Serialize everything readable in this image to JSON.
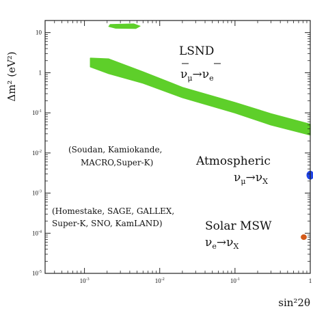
{
  "chart_data": {
    "type": "scatter",
    "title": "",
    "xlabel": "sin²2θ",
    "ylabel": "Δm² (eV²)",
    "x_scale": "log",
    "y_scale": "log",
    "xlim": [
      0.0003,
      1
    ],
    "ylim": [
      1e-05,
      20
    ],
    "grid": false,
    "x_ticks": [
      {
        "value": 0.001,
        "base": "10",
        "exp": "-3"
      },
      {
        "value": 0.01,
        "base": "10",
        "exp": "-2"
      },
      {
        "value": 0.1,
        "base": "10",
        "exp": "-1"
      },
      {
        "value": 1,
        "base": "1",
        "exp": ""
      }
    ],
    "y_ticks": [
      {
        "value": 10,
        "base": "10",
        "exp": ""
      },
      {
        "value": 1,
        "base": "1",
        "exp": ""
      },
      {
        "value": 0.1,
        "base": "10",
        "exp": "-1"
      },
      {
        "value": 0.01,
        "base": "10",
        "exp": "-2"
      },
      {
        "value": 0.001,
        "base": "10",
        "exp": "-3"
      },
      {
        "value": 0.0001,
        "base": "10",
        "exp": "-4"
      },
      {
        "value": 1e-05,
        "base": "10",
        "exp": "-5"
      }
    ],
    "regions": [
      {
        "name": "LSND",
        "color": "#5ecf2a",
        "shape": "band",
        "upper": [
          [
            0.0012,
            2.3
          ],
          [
            0.0021,
            2.2
          ],
          [
            0.006,
            1.05
          ],
          [
            0.02,
            0.43
          ],
          [
            0.1,
            0.18
          ],
          [
            0.3,
            0.095
          ],
          [
            1,
            0.052
          ]
        ],
        "lower": [
          [
            0.0012,
            1.4
          ],
          [
            0.0021,
            0.95
          ],
          [
            0.006,
            0.55
          ],
          [
            0.02,
            0.24
          ],
          [
            0.1,
            0.1
          ],
          [
            0.3,
            0.05
          ],
          [
            1,
            0.028
          ]
        ]
      },
      {
        "name": "LSND",
        "color": "#5ecf2a",
        "shape": "polygon",
        "points": [
          [
            0.0022,
            16
          ],
          [
            0.0045,
            16.5
          ],
          [
            0.0055,
            14.5
          ],
          [
            0.0048,
            12.6
          ],
          [
            0.0026,
            12.8
          ],
          [
            0.0021,
            14.2
          ]
        ]
      },
      {
        "name": "Atmospheric",
        "color": "#1f44e8",
        "shape": "ellipse",
        "center": [
          1,
          0.0028
        ],
        "rx_decades": 0.05,
        "ry_decades": 0.11
      },
      {
        "name": "Solar MSW",
        "color": "#d45a1a",
        "shape": "ellipse",
        "center": [
          0.82,
          8e-05
        ],
        "rx_decades": 0.04,
        "ry_decades": 0.07
      }
    ],
    "annotations": {
      "lsnd_name": "LSND",
      "lsnd_nu1": "ν",
      "lsnd_sub1": "μ",
      "lsnd_arrow": "→",
      "lsnd_nu2": "ν",
      "lsnd_sub2": "e",
      "atm_experiments_1": "(Soudan, Kamiokande,",
      "atm_experiments_2": "MACRO,Super-K)",
      "atm_name": "Atmospheric",
      "atm_nu1": "ν",
      "atm_sub1": "μ",
      "atm_arrow": "→",
      "atm_nu2": "ν",
      "atm_sub2": "X",
      "solar_experiments_1": "(Homestake, SAGE, GALLEX,",
      "solar_experiments_2": "Super-K, SNO, KamLAND)",
      "solar_name": "Solar MSW",
      "solar_nu1": "ν",
      "solar_sub1": "e",
      "solar_arrow": "→",
      "solar_nu2": "ν",
      "solar_sub2": "X"
    }
  }
}
